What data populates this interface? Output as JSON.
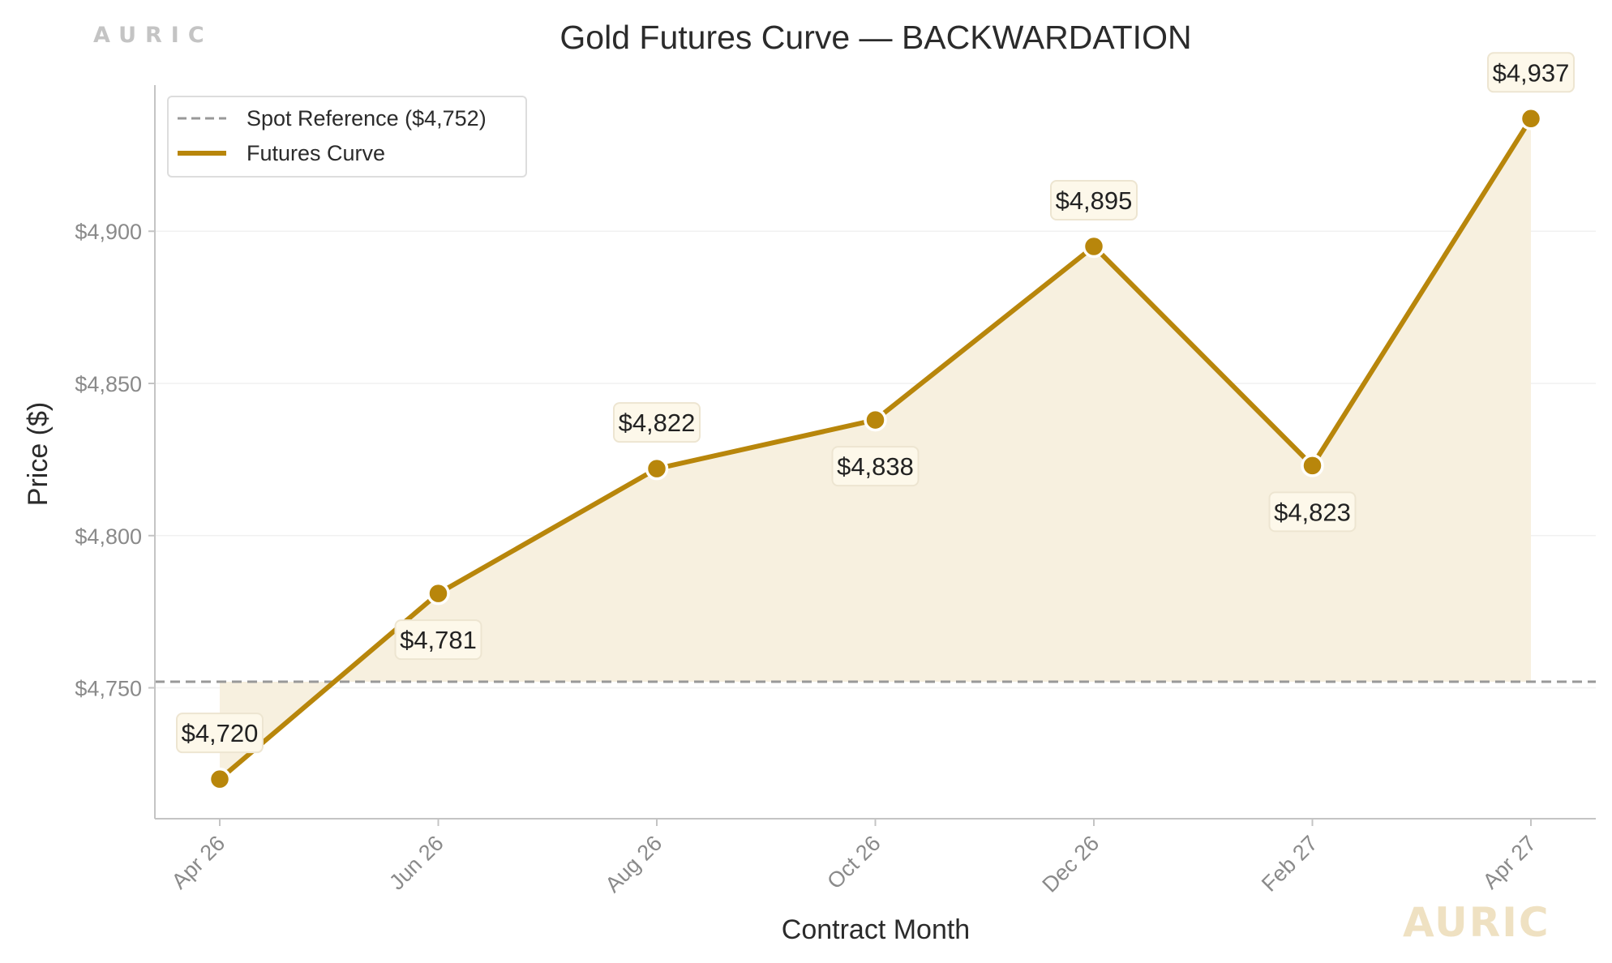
{
  "brand": {
    "top_wordmark": "AURIC",
    "bottom_watermark": "AURIC"
  },
  "chart_data": {
    "type": "line",
    "title": "Gold Futures Curve — BACKWARDATION",
    "xlabel": "Contract Month",
    "ylabel": "Price ($)",
    "categories": [
      "Apr 26",
      "Jun 26",
      "Aug 26",
      "Oct 26",
      "Dec 26",
      "Feb 27",
      "Apr 27"
    ],
    "series": [
      {
        "name": "Futures Curve",
        "values": [
          4720,
          4781,
          4822,
          4838,
          4895,
          4823,
          4937
        ],
        "labels": [
          "$4,720",
          "$4,781",
          "$4,822",
          "$4,838",
          "$4,895",
          "$4,823",
          "$4,937"
        ],
        "label_side": [
          "above",
          "below",
          "above",
          "below",
          "above",
          "below",
          "above"
        ],
        "color": "#b8860b",
        "fill_color": "#f7f0df"
      }
    ],
    "reference_line": {
      "name": "Spot Reference ($4,752)",
      "value": 4752,
      "color": "#999999",
      "style": "dashed"
    },
    "ylim": [
      4707,
      4948
    ],
    "yticks": [
      4750,
      4800,
      4850,
      4900
    ],
    "ytick_labels": [
      "$4,750",
      "$4,800",
      "$4,850",
      "$4,900"
    ],
    "grid": true,
    "legend_position": "top-left"
  }
}
